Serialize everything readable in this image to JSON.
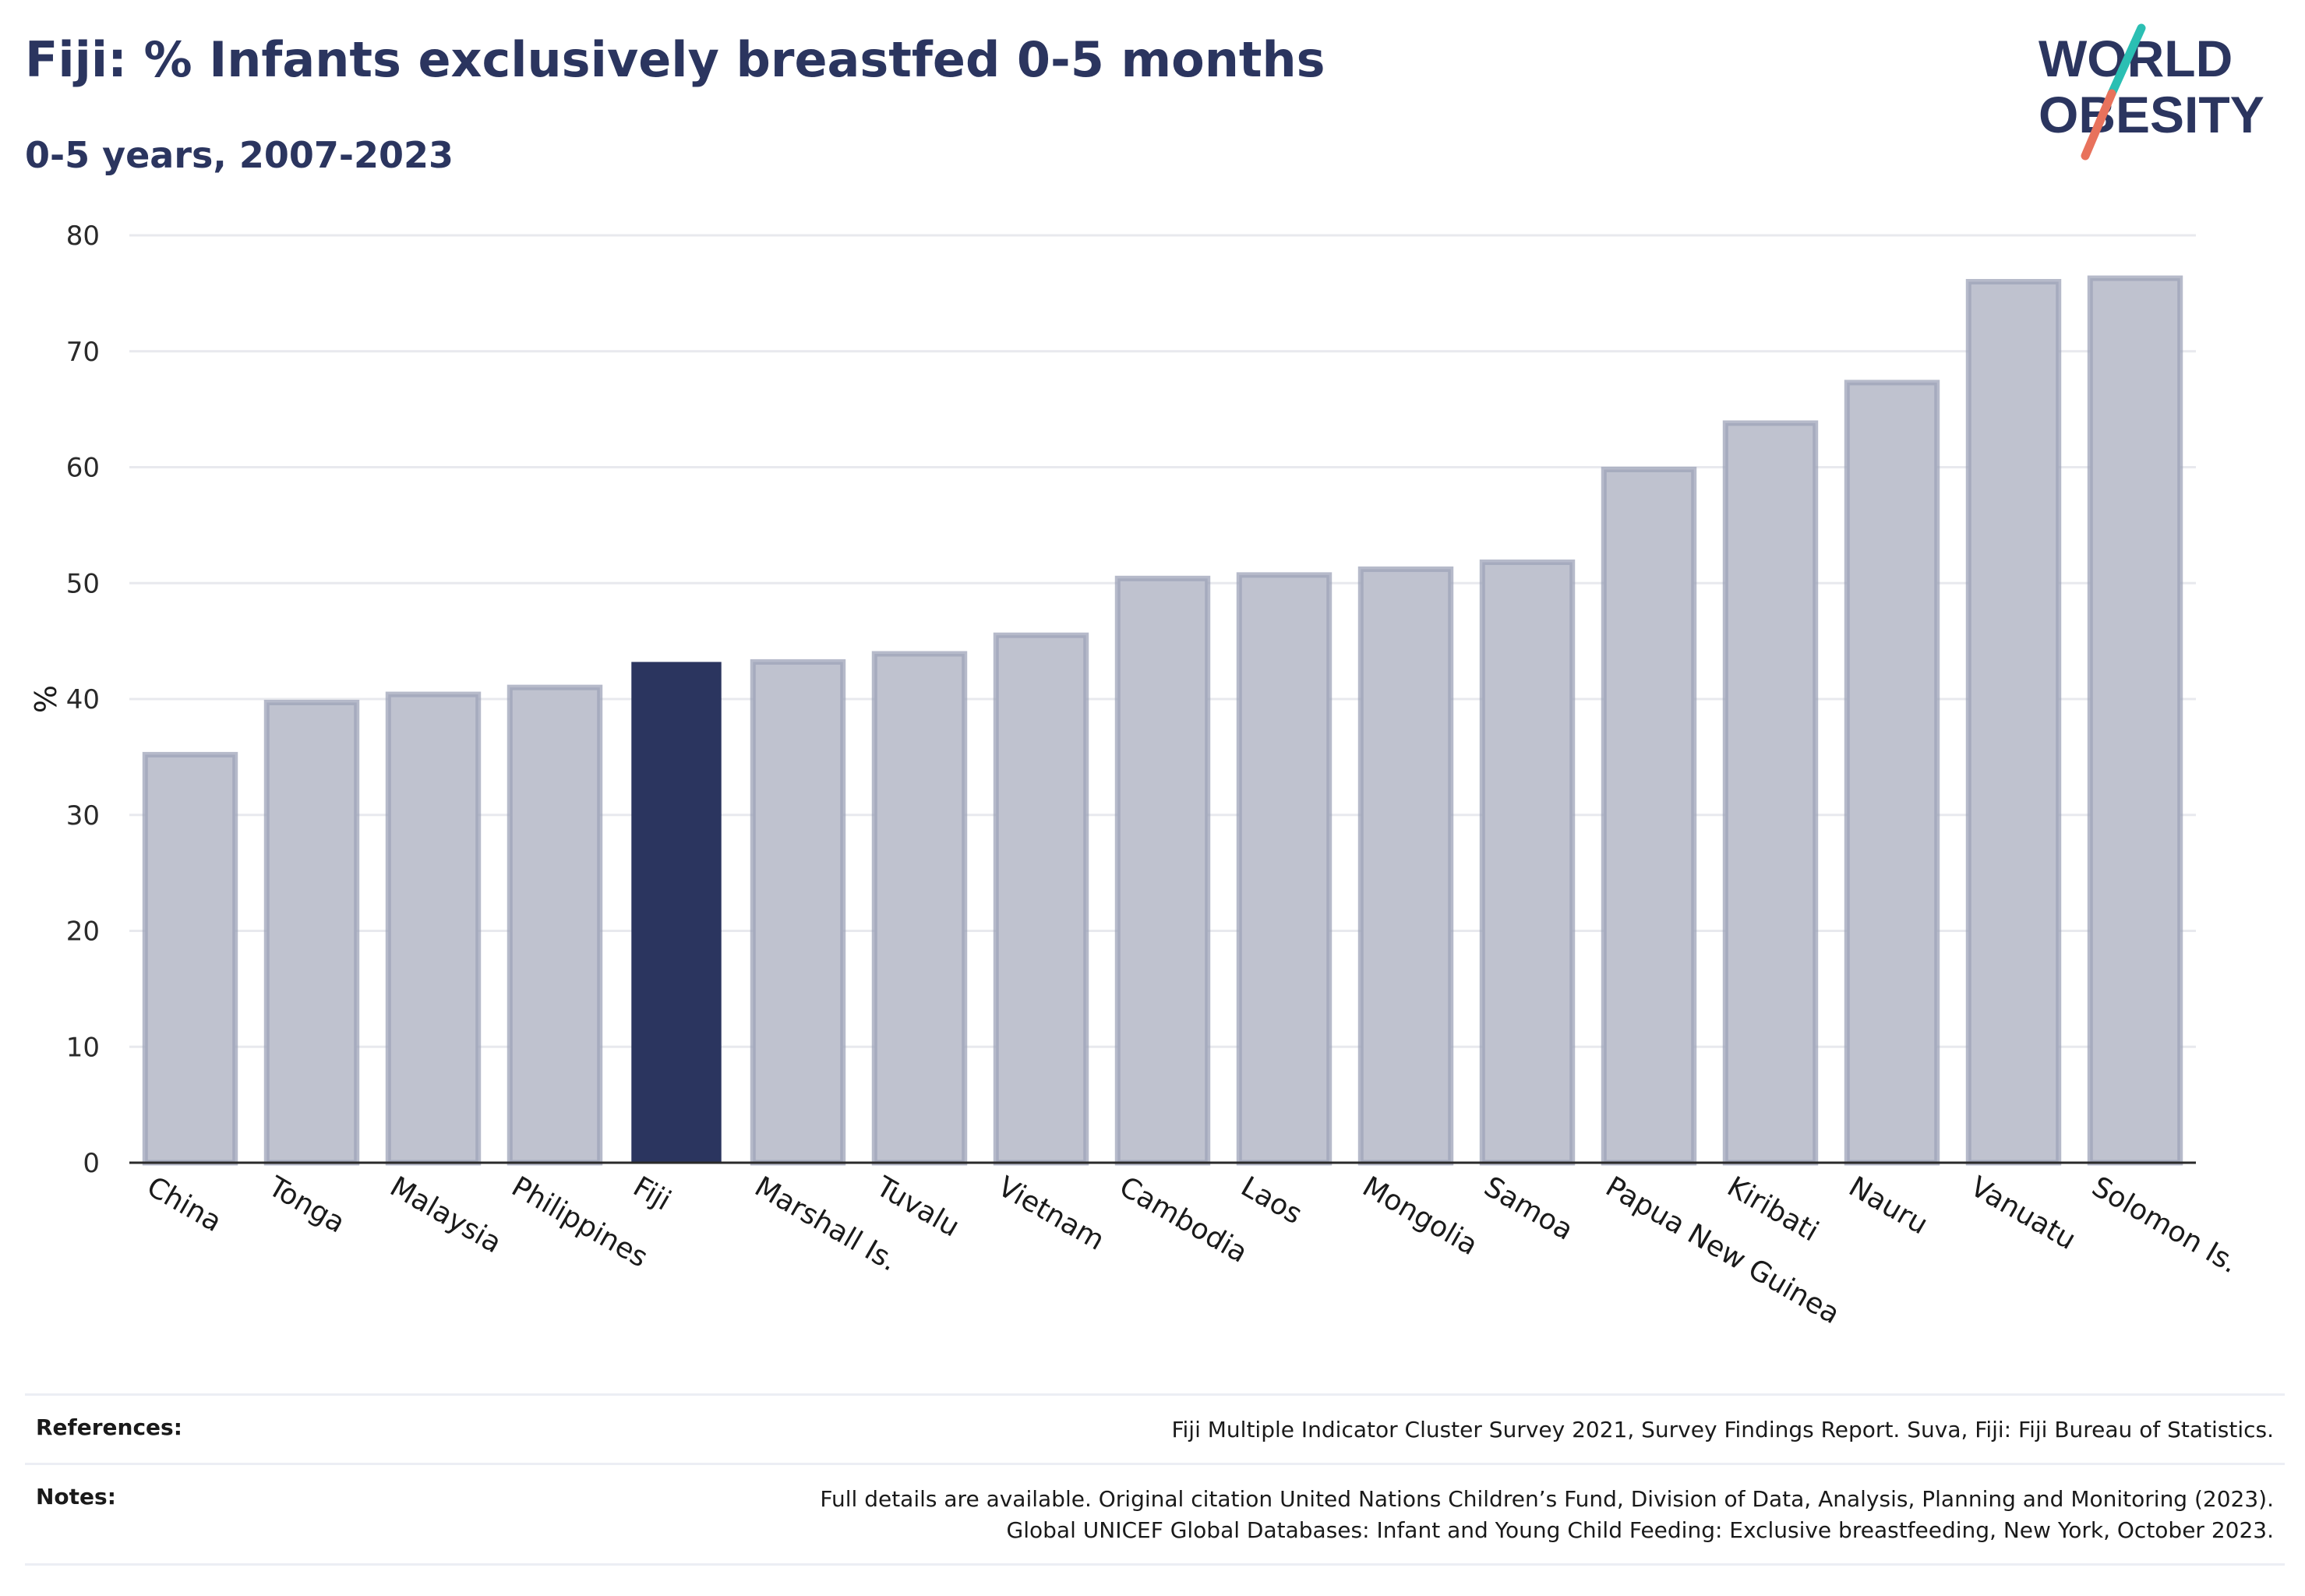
{
  "header": {
    "title": "Fiji: % Infants exclusively breastfed 0-5 months",
    "subtitle": "0-5 years, 2007-2023"
  },
  "logo": {
    "line1": "WORLD",
    "line2": "OBESITY",
    "icon": "world-obesity-logo"
  },
  "colors": {
    "highlight_bar": "#2b355f",
    "other_bar": "#bfc2cf",
    "other_bar_border": "#9ea3b8",
    "grid": "#e8e9ee",
    "text": "#2b355f",
    "logo_slash_teal": "#2bbfb3",
    "logo_slash_coral": "#e8725c"
  },
  "chart_data": {
    "type": "bar",
    "title": "Fiji: % Infants exclusively breastfed 0-5 months",
    "subtitle": "0-5 years, 2007-2023",
    "xlabel": "",
    "ylabel": "%",
    "ylim": [
      0,
      80
    ],
    "yticks": [
      0,
      10,
      20,
      30,
      40,
      50,
      60,
      70,
      80
    ],
    "grid": true,
    "highlight": "Fiji",
    "categories": [
      "China",
      "Tonga",
      "Malaysia",
      "Philippines",
      "Fiji",
      "Marshall Is.",
      "Tuvalu",
      "Vietnam",
      "Cambodia",
      "Laos",
      "Mongolia",
      "Samoa",
      "Papua New Guinea",
      "Kiribati",
      "Nauru",
      "Vanuatu",
      "Solomon Is."
    ],
    "values": [
      35.2,
      39.7,
      40.4,
      41.0,
      43.2,
      43.2,
      43.9,
      45.5,
      50.4,
      50.7,
      51.2,
      51.8,
      59.8,
      63.8,
      67.3,
      76.0,
      76.3
    ]
  },
  "footer": {
    "references_label": "References:",
    "references_text": "Fiji Multiple Indicator Cluster Survey 2021, Survey Findings Report. Suva, Fiji: Fiji Bureau of Statistics.",
    "notes_label": "Notes:",
    "notes_line1": "Full details are available. Original citation United Nations Children’s Fund, Division of Data, Analysis, Planning and Monitoring (2023).",
    "notes_line2": "Global UNICEF Global Databases: Infant and Young Child Feeding: Exclusive breastfeeding, New York, October 2023."
  }
}
